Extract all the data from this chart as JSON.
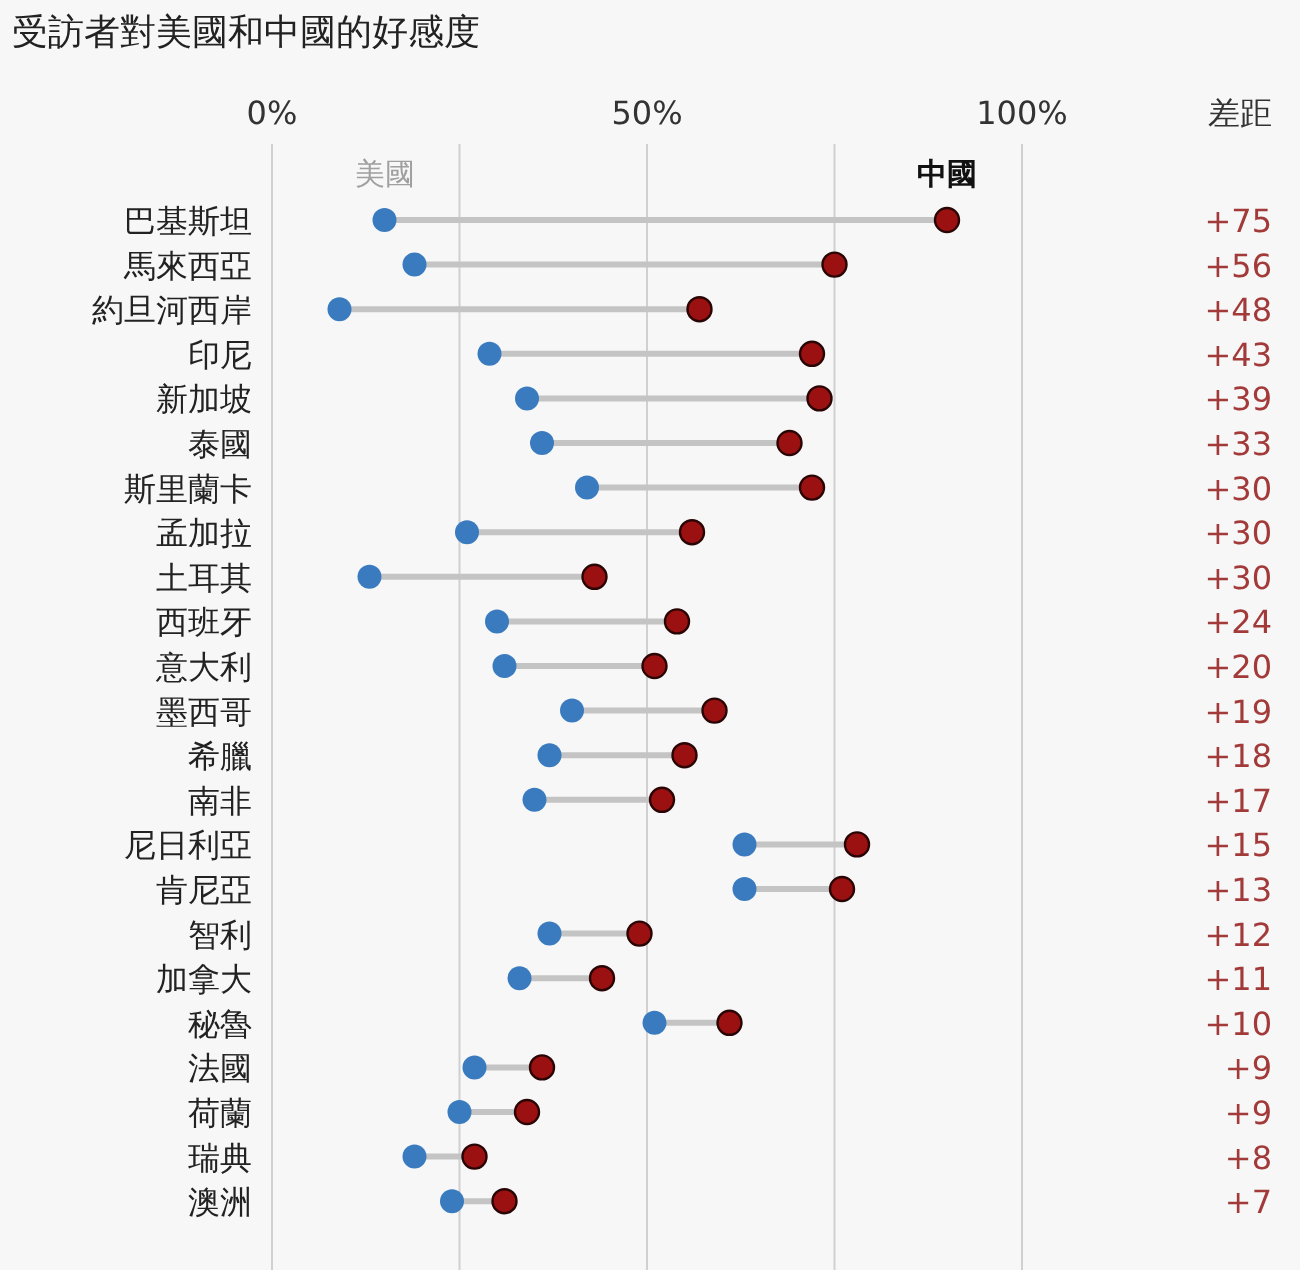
{
  "chart_data": {
    "type": "scatter",
    "title": "受訪者對美國和中國的好感度",
    "marker": "circle",
    "grid": "x",
    "orientation": "horizontal",
    "legend": false,
    "annotations": [
      "差距",
      "+75",
      "+56",
      "+48",
      "+43",
      "+39",
      "+33",
      "+30",
      "+30",
      "+30",
      "+24",
      "+20",
      "+19",
      "+18",
      "+17",
      "+15",
      "+13",
      "+12",
      "+11",
      "+10",
      "+9",
      "+9",
      "+8",
      "+7"
    ],
    "categories": [
      "巴基斯坦",
      "馬來西亞",
      "約旦河西岸",
      "印尼",
      "新加坡",
      "泰國",
      "斯里蘭卡",
      "孟加拉",
      "土耳其",
      "西班牙",
      "意大利",
      "墨西哥",
      "希臘",
      "南非",
      "尼日利亞",
      "肯尼亞",
      "智利",
      "加拿大",
      "秘魯",
      "法國",
      "荷蘭",
      "瑞典",
      "澳洲"
    ],
    "xlim": [
      0,
      100
    ],
    "xticks": [
      {
        "value": 0,
        "label": "0%"
      },
      {
        "value": 25,
        "label": null
      },
      {
        "value": 50,
        "label": "50%"
      },
      {
        "value": 75,
        "label": null
      },
      {
        "value": 100,
        "label": "100%"
      }
    ],
    "series": [
      {
        "name": "美國",
        "color": "#3a7bbf",
        "values": [
          15,
          19,
          9,
          29,
          34,
          36,
          42,
          26,
          13,
          30,
          31,
          40,
          37,
          35,
          63,
          63,
          37,
          33,
          51,
          27,
          25,
          19,
          24
        ]
      },
      {
        "name": "中國",
        "color": "#9b1010",
        "values": [
          90,
          75,
          57,
          72,
          73,
          69,
          72,
          56,
          43,
          54,
          51,
          59,
          55,
          52,
          78,
          76,
          49,
          44,
          61,
          36,
          34,
          27,
          31
        ]
      }
    ]
  }
}
